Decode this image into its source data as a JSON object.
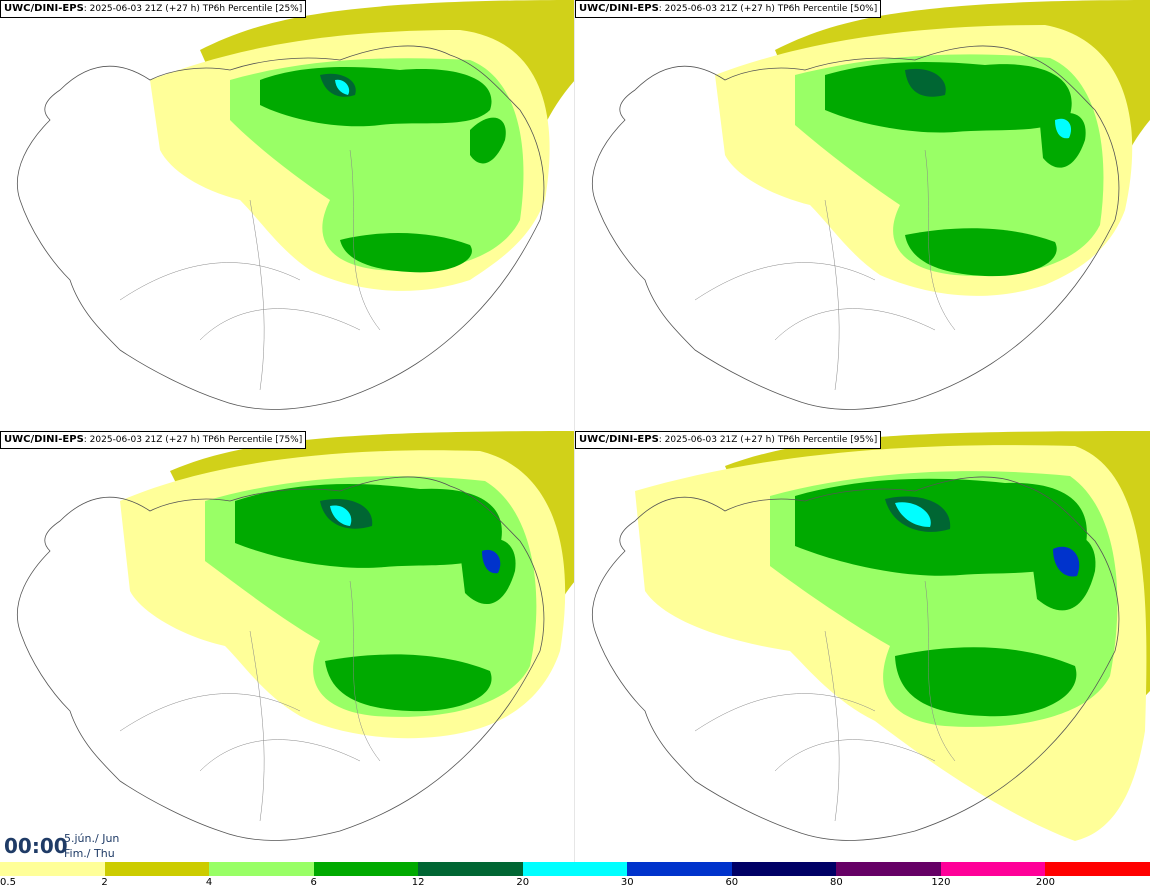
{
  "panels": [
    {
      "model": "UWC/DINI-EPS",
      "info": ": 2025-06-03 21Z (+27 h) TP6h Percentile [25%]",
      "percentile": 25
    },
    {
      "model": "UWC/DINI-EPS",
      "info": ": 2025-06-03 21Z (+27 h) TP6h Percentile [50%]",
      "percentile": 50
    },
    {
      "model": "UWC/DINI-EPS",
      "info": ": 2025-06-03 21Z (+27 h) TP6h Percentile [75%]",
      "percentile": 75
    },
    {
      "model": "UWC/DINI-EPS",
      "info": ": 2025-06-03 21Z (+27 h) TP6h Percentile [95%]",
      "percentile": 95
    }
  ],
  "valid_time": {
    "time": "00:00",
    "date_line1": "5.jún./ Jun",
    "date_line2": "Fim./ Thu"
  },
  "legend": {
    "levels": [
      "0.5",
      "2",
      "4",
      "6",
      "12",
      "20",
      "30",
      "60",
      "80",
      "120",
      "200"
    ],
    "colors": [
      "#ffff99",
      "#cccc00",
      "#99ff66",
      "#00aa00",
      "#006633",
      "#00ffff",
      "#0033cc",
      "#000066",
      "#660066",
      "#ff0099",
      "#ff0000"
    ]
  },
  "shading": {
    "ocean": "#cccc00",
    "light": "#ffff99",
    "mid": "#99ff66",
    "green": "#00aa00",
    "dark": "#006633",
    "cyan": "#00ffff",
    "blue": "#0033cc"
  }
}
